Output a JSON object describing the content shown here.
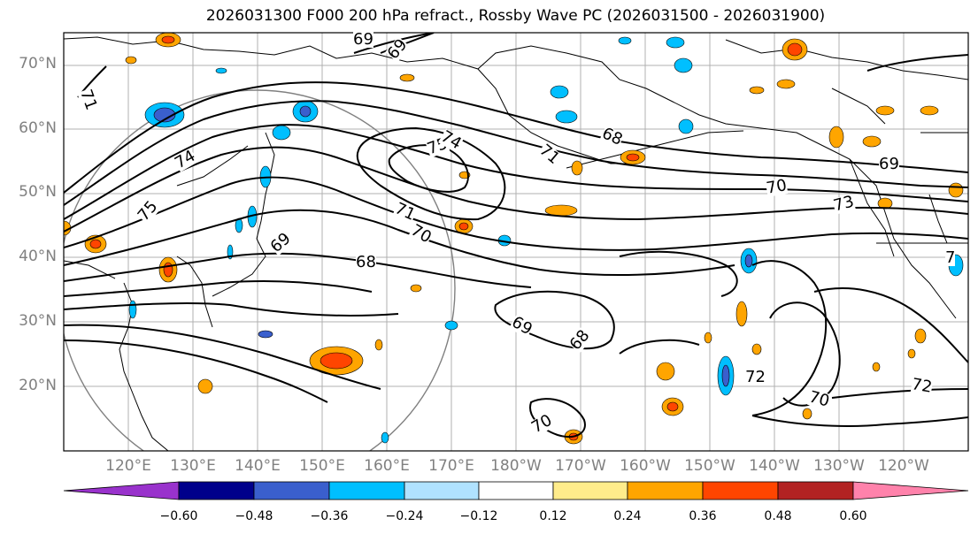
{
  "title": "2026031300 F000 200 hPa refract., Rossby Wave PC (2026031500 - 2026031900)",
  "map": {
    "latitude_labels": [
      "70°N",
      "60°N",
      "50°N",
      "40°N",
      "30°N",
      "20°N"
    ],
    "longitude_labels": [
      "120°E",
      "130°E",
      "140°E",
      "150°E",
      "160°E",
      "170°E",
      "180°W",
      "170°W",
      "160°W",
      "150°W",
      "140°W",
      "130°W",
      "120°W"
    ],
    "contour_labels": [
      "69",
      "69",
      "71",
      "74",
      "75",
      "75",
      "74",
      "68",
      "71",
      "69",
      "70",
      "73",
      "71",
      "70",
      "69",
      "68",
      "69",
      "68",
      "72",
      "72",
      "70",
      "70",
      "7"
    ],
    "land_color": "#ffffff",
    "coastline_color": "#000000",
    "contour_color": "#000000",
    "gridline_color": "#b0b0b0",
    "circle_color": "#808080"
  },
  "colorbar": {
    "tick_labels": [
      "−0.60",
      "−0.48",
      "−0.36",
      "−0.24",
      "−0.12",
      "0.12",
      "0.24",
      "0.36",
      "0.48",
      "0.60"
    ],
    "bins": [
      {
        "color": "#9932cc"
      },
      {
        "color": "#00008b"
      },
      {
        "color": "#3a5fcd"
      },
      {
        "color": "#00bfff"
      },
      {
        "color": "#b0e2ff"
      },
      {
        "color": "#ffffff"
      },
      {
        "color": "#ffec8b"
      },
      {
        "color": "#ffa500"
      },
      {
        "color": "#ff4500"
      },
      {
        "color": "#b22222"
      },
      {
        "color": "#ff82ab"
      }
    ]
  }
}
